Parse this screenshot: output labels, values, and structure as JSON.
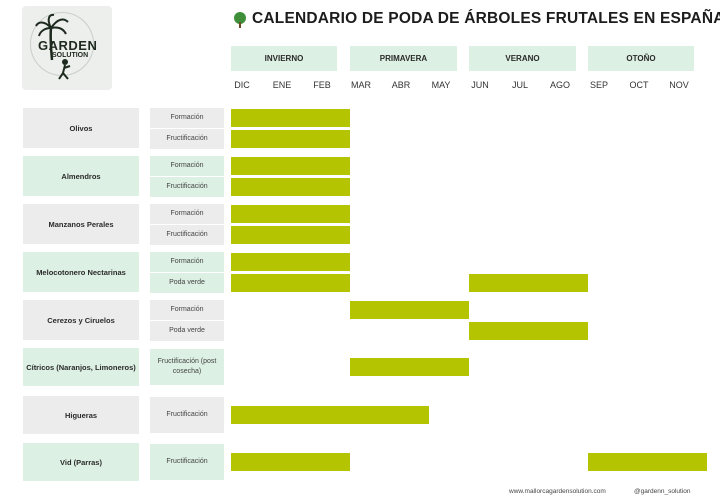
{
  "logo": {
    "word": "GARDEN",
    "sub": "SOLUTION"
  },
  "title": "CALENDARIO DE PODA DE ÁRBOLES FRUTALES EN ESPAÑA",
  "seasons": [
    "INVIERNO",
    "PRIMAVERA",
    "VERANO",
    "OTOÑO"
  ],
  "months": [
    "DIC",
    "ENE",
    "FEB",
    "MAR",
    "ABR",
    "MAY",
    "JUN",
    "JUL",
    "AGO",
    "SEP",
    "OCT",
    "NOV"
  ],
  "trees": [
    {
      "name": "Olivos",
      "rows": [
        {
          "type": "Formación",
          "periods": [
            [
              "DIC",
              "FEB"
            ]
          ]
        },
        {
          "type": "Fructificación",
          "periods": [
            [
              "DIC",
              "FEB"
            ]
          ]
        }
      ]
    },
    {
      "name": "Almendros",
      "rows": [
        {
          "type": "Formación",
          "periods": [
            [
              "DIC",
              "FEB"
            ]
          ]
        },
        {
          "type": "Fructificación",
          "periods": [
            [
              "DIC",
              "FEB"
            ]
          ]
        }
      ]
    },
    {
      "name": "Manzanos Perales",
      "rows": [
        {
          "type": "Formación",
          "periods": [
            [
              "DIC",
              "FEB"
            ]
          ]
        },
        {
          "type": "Fructificación",
          "periods": [
            [
              "DIC",
              "FEB"
            ]
          ]
        }
      ]
    },
    {
      "name": "Melocotonero Nectarinas",
      "rows": [
        {
          "type": "Formación",
          "periods": [
            [
              "DIC",
              "FEB"
            ]
          ]
        },
        {
          "type": "Poda verde",
          "periods": [
            [
              "DIC",
              "FEB"
            ],
            [
              "JUN",
              "AGO"
            ]
          ]
        }
      ]
    },
    {
      "name": "Cerezos y Ciruelos",
      "rows": [
        {
          "type": "Formación",
          "periods": [
            [
              "MAR",
              "MAY"
            ]
          ]
        },
        {
          "type": "Poda verde",
          "periods": [
            [
              "JUN",
              "AGO"
            ]
          ]
        }
      ]
    },
    {
      "name": "Cítricos (Naranjos, Limoneros)",
      "rows": [
        {
          "type": "Fructificación (post cosecha)",
          "periods": [
            [
              "MAR",
              "MAY"
            ]
          ]
        }
      ]
    },
    {
      "name": "Higueras",
      "rows": [
        {
          "type": "Fructificación",
          "periods": [
            [
              "DIC",
              "ABR"
            ]
          ]
        }
      ]
    },
    {
      "name": "Vid (Parras)",
      "rows": [
        {
          "type": "Fructificación",
          "periods": [
            [
              "DIC",
              "FEB"
            ],
            [
              "SEP",
              "NOV"
            ]
          ]
        }
      ]
    }
  ],
  "footer": {
    "website": "www.mallorcagardensolution.com",
    "handle": "@gardenn_solution"
  },
  "colors": {
    "bar": "#b5c400",
    "season_bg": "#dcf0e3",
    "label_bg": "#ececec"
  }
}
